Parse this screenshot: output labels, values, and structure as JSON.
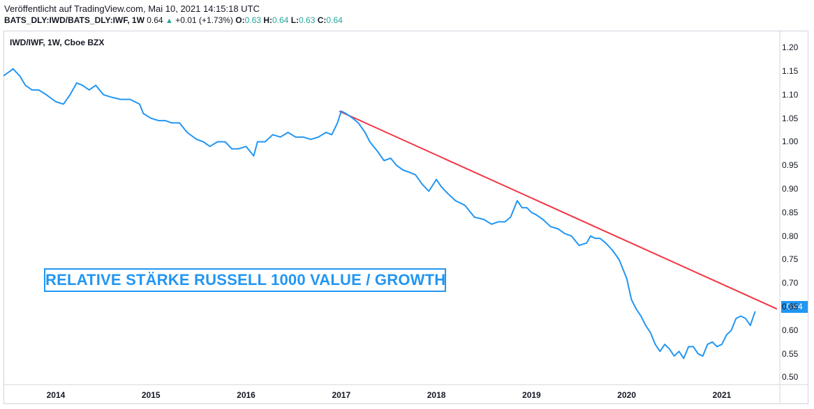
{
  "header": {
    "published": "Veröffentlicht auf TradingView.com, Mai 10, 2021 14:15:18 UTC",
    "symbol": "BATS_DLY:IWD/BATS_DLY:IWF, 1W",
    "last": "0.64",
    "change": "+0.01 (+1.73%)",
    "o_label": "O:",
    "o": "0.63",
    "h_label": "H:",
    "h": "0.64",
    "l_label": "L:",
    "l": "0.63",
    "c_label": "C:",
    "c": "0.64"
  },
  "chart_data": {
    "type": "line",
    "title": "IWD/IWF, 1W, Cboe BZX",
    "annotation": "RELATIVE STÄRKE RUSSELL 1000 VALUE / GROWTH",
    "last_price_label": "0.64",
    "xlabel": "",
    "ylabel": "",
    "ylim": [
      0.48,
      1.23
    ],
    "xlim": [
      2013.45,
      2021.58
    ],
    "y_ticks": [
      "1.20",
      "1.15",
      "1.10",
      "1.05",
      "1.00",
      "0.95",
      "0.90",
      "0.85",
      "0.80",
      "0.75",
      "0.70",
      "0.65",
      "0.60",
      "0.55",
      "0.50"
    ],
    "x_ticks": [
      "2014",
      "2015",
      "2016",
      "2017",
      "2018",
      "2019",
      "2020",
      "2021"
    ],
    "grid": false,
    "colors": {
      "series": "#2196f3",
      "trendline": "#f23645",
      "annotation": "#2196f3"
    },
    "series": [
      {
        "x": [
          2013.45,
          2013.52,
          2013.55,
          2013.62,
          2013.68,
          2013.75,
          2013.82,
          2013.9,
          2014.0,
          2014.08,
          2014.15,
          2014.22,
          2014.28,
          2014.35,
          2014.42,
          2014.5,
          2014.58,
          2014.68,
          2014.78,
          2014.88,
          2014.92,
          2015.0,
          2015.08,
          2015.15,
          2015.22,
          2015.3,
          2015.38,
          2015.48,
          2015.55,
          2015.62,
          2015.7,
          2015.78,
          2015.85,
          2015.92,
          2016.0,
          2016.08,
          2016.12,
          2016.2,
          2016.28,
          2016.36,
          2016.44,
          2016.52,
          2016.6,
          2016.68,
          2016.76,
          2016.84,
          2016.9,
          2016.96,
          2017.0,
          2017.05,
          2017.12,
          2017.18,
          2017.25,
          2017.3,
          2017.38,
          2017.45,
          2017.52,
          2017.58,
          2017.65,
          2017.72,
          2017.78,
          2017.85,
          2017.92,
          2018.0,
          2018.05,
          2018.12,
          2018.2,
          2018.3,
          2018.4,
          2018.5,
          2018.58,
          2018.65,
          2018.72,
          2018.78,
          2018.85,
          2018.9,
          2018.95,
          2019.0,
          2019.05,
          2019.12,
          2019.2,
          2019.28,
          2019.35,
          2019.42,
          2019.5,
          2019.58,
          2019.62,
          2019.67,
          2019.72,
          2019.78,
          2019.85,
          2019.92,
          2020.0,
          2020.05,
          2020.1,
          2020.15,
          2020.2,
          2020.25,
          2020.3,
          2020.35,
          2020.4,
          2020.45,
          2020.5,
          2020.55,
          2020.6,
          2020.65,
          2020.7,
          2020.75,
          2020.8,
          2020.85,
          2020.9,
          2020.95,
          2021.0,
          2021.05,
          2021.1,
          2021.15,
          2021.2,
          2021.25,
          2021.3,
          2021.35
        ],
        "values": [
          1.14,
          1.15,
          1.155,
          1.14,
          1.12,
          1.11,
          1.11,
          1.1,
          1.085,
          1.08,
          1.1,
          1.125,
          1.12,
          1.11,
          1.12,
          1.1,
          1.095,
          1.09,
          1.09,
          1.08,
          1.06,
          1.05,
          1.045,
          1.045,
          1.04,
          1.04,
          1.02,
          1.005,
          1.0,
          0.99,
          1.0,
          1.0,
          0.985,
          0.985,
          0.99,
          0.97,
          1.0,
          1.0,
          1.015,
          1.01,
          1.02,
          1.01,
          1.01,
          1.005,
          1.01,
          1.02,
          1.015,
          1.04,
          1.065,
          1.06,
          1.05,
          1.04,
          1.02,
          1.0,
          0.98,
          0.96,
          0.965,
          0.95,
          0.94,
          0.935,
          0.93,
          0.91,
          0.895,
          0.92,
          0.905,
          0.89,
          0.875,
          0.865,
          0.84,
          0.835,
          0.825,
          0.83,
          0.83,
          0.84,
          0.875,
          0.86,
          0.86,
          0.85,
          0.845,
          0.835,
          0.82,
          0.815,
          0.805,
          0.8,
          0.78,
          0.785,
          0.8,
          0.795,
          0.795,
          0.785,
          0.77,
          0.75,
          0.71,
          0.665,
          0.645,
          0.63,
          0.61,
          0.595,
          0.57,
          0.555,
          0.57,
          0.56,
          0.545,
          0.555,
          0.54,
          0.565,
          0.565,
          0.55,
          0.545,
          0.57,
          0.575,
          0.565,
          0.57,
          0.59,
          0.6,
          0.625,
          0.63,
          0.625,
          0.61,
          0.64
        ]
      }
    ],
    "trendline": {
      "x": [
        2016.98,
        2021.58
      ],
      "y": [
        1.065,
        0.645
      ]
    }
  }
}
